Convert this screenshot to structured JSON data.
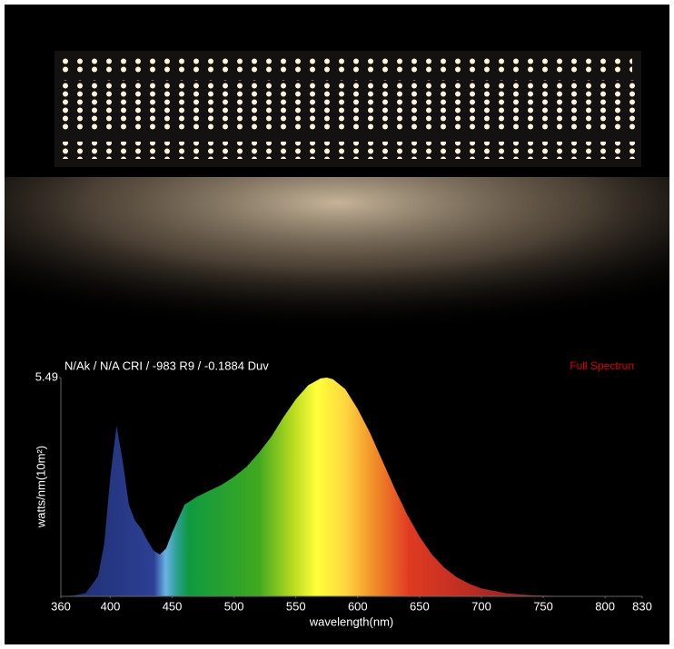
{
  "chart_data": {
    "type": "area",
    "title": "N/Ak / N/A CRI / -983 R9 / -0.1884 Duv",
    "annotation": "Full Spectrun",
    "xlabel": "wavelength(nm)",
    "ylabel": "watts/nm(10m²)",
    "x": [
      360,
      370,
      380,
      390,
      395,
      400,
      405,
      410,
      415,
      420,
      425,
      430,
      435,
      440,
      445,
      450,
      460,
      470,
      480,
      490,
      500,
      510,
      520,
      530,
      540,
      550,
      560,
      570,
      575,
      580,
      590,
      600,
      610,
      620,
      630,
      640,
      650,
      660,
      670,
      680,
      690,
      700,
      720,
      740,
      760,
      780,
      830
    ],
    "values": [
      0,
      0.02,
      0.08,
      0.5,
      1.3,
      3.0,
      4.28,
      3.4,
      2.3,
      1.9,
      1.7,
      1.4,
      1.15,
      1.05,
      1.2,
      1.6,
      2.3,
      2.5,
      2.65,
      2.8,
      3.0,
      3.25,
      3.6,
      4.0,
      4.5,
      4.95,
      5.3,
      5.47,
      5.49,
      5.45,
      5.2,
      4.7,
      4.1,
      3.4,
      2.7,
      2.05,
      1.5,
      1.05,
      0.72,
      0.48,
      0.32,
      0.2,
      0.08,
      0.03,
      0.01,
      0,
      0
    ],
    "xlim": [
      360,
      830
    ],
    "xticks": [
      360,
      400,
      450,
      500,
      550,
      600,
      650,
      700,
      750,
      800,
      830
    ],
    "ylim": [
      0,
      5.49
    ],
    "yticks": [
      5.49
    ],
    "grid": false
  }
}
